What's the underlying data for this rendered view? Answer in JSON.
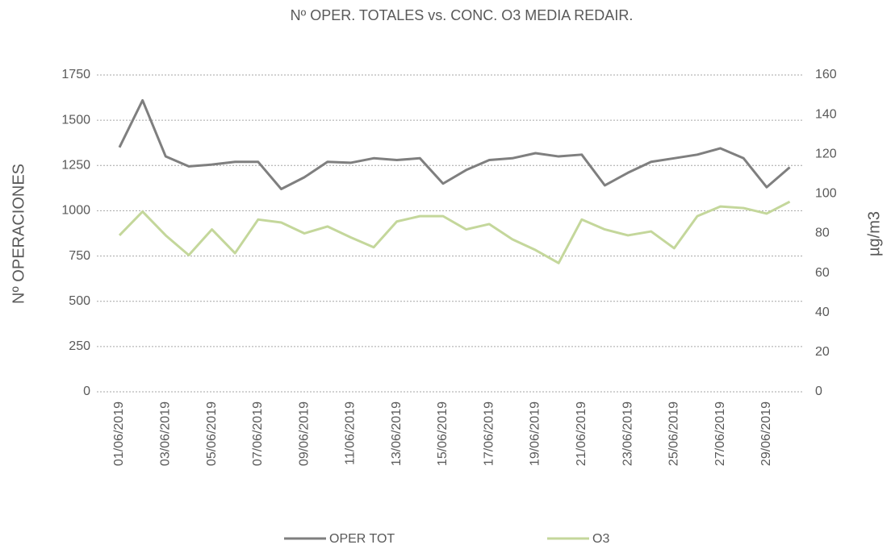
{
  "chart_data": {
    "type": "line",
    "title": "Nº OPER. TOTALES  vs. CONC. O3 MEDIA REDAIR.",
    "y_label": "Nº OPERACIONES",
    "y2_label": "µg/m3",
    "categories": [
      "01/06/2019",
      null,
      "03/06/2019",
      null,
      "05/06/2019",
      null,
      "07/06/2019",
      null,
      "09/06/2019",
      null,
      "11/06/2019",
      null,
      "13/06/2019",
      null,
      "15/06/2019",
      null,
      "17/06/2019",
      null,
      "19/06/2019",
      null,
      "21/06/2019",
      null,
      "23/06/2019",
      null,
      "25/06/2019",
      null,
      "27/06/2019",
      null,
      "29/06/2019",
      null
    ],
    "series": [
      {
        "name": "OPER TOT",
        "color": "#7f7f7f",
        "axis": "y",
        "values": [
          1350,
          1610,
          1300,
          1245,
          1255,
          1270,
          1270,
          1120,
          1185,
          1270,
          1265,
          1290,
          1280,
          1290,
          1150,
          1225,
          1280,
          1290,
          1318,
          1300,
          1310,
          1140,
          1210,
          1270,
          1290,
          1310,
          1345,
          1290,
          1130,
          1240
        ]
      },
      {
        "name": "O3",
        "color": "#c4d79b",
        "axis": "y2",
        "values": [
          79,
          91,
          79,
          69,
          82,
          70,
          87,
          85.5,
          80,
          83.5,
          78,
          73,
          86,
          88.7,
          88.7,
          82,
          84.7,
          77,
          71.6,
          65,
          87,
          82,
          79,
          81,
          72.5,
          88.7,
          93.6,
          92.8,
          90,
          96
        ]
      }
    ],
    "ylim": [
      0,
      1750
    ],
    "yticks": [
      0,
      250,
      500,
      750,
      1000,
      1250,
      1500,
      1750
    ],
    "y2lim": [
      0,
      160
    ],
    "y2ticks": [
      0,
      20,
      40,
      60,
      80,
      100,
      120,
      140,
      160
    ],
    "grid": true,
    "legend": "bottom"
  }
}
